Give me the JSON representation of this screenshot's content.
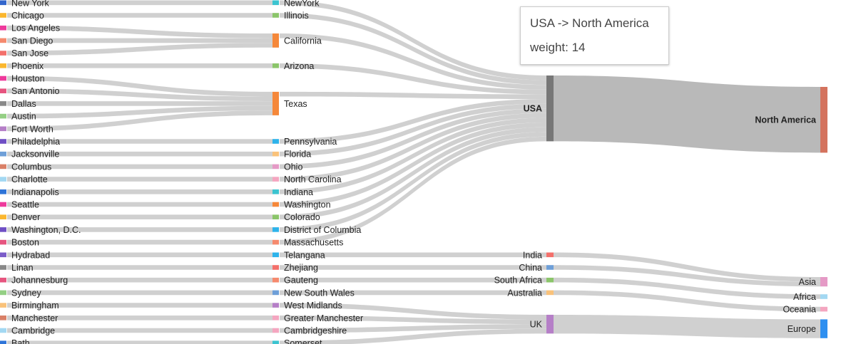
{
  "chart_data": {
    "type": "sankey",
    "tooltip": {
      "link": "USA -> North America",
      "weight_label": "weight: 14"
    },
    "nodes": [
      {
        "id": "New York",
        "label": "New York",
        "color": "#3366cc"
      },
      {
        "id": "Chicago",
        "label": "Chicago",
        "color": "#fbb72f"
      },
      {
        "id": "Los Angeles",
        "label": "Los Angeles",
        "color": "#ee3a9c"
      },
      {
        "id": "San Diego",
        "label": "San Diego",
        "color": "#f58a6e"
      },
      {
        "id": "San Jose",
        "label": "San Jose",
        "color": "#f3706b"
      },
      {
        "id": "Phoenix",
        "label": "Phoenix",
        "color": "#fbb72f"
      },
      {
        "id": "Houston",
        "label": "Houston",
        "color": "#ee3a9c"
      },
      {
        "id": "San Antonio",
        "label": "San Antonio",
        "color": "#e6557f"
      },
      {
        "id": "Dallas",
        "label": "Dallas",
        "color": "#888888"
      },
      {
        "id": "Austin",
        "label": "Austin",
        "color": "#94cf84"
      },
      {
        "id": "Fort Worth",
        "label": "Fort Worth",
        "color": "#b57fc7"
      },
      {
        "id": "Philadelphia",
        "label": "Philadelphia",
        "color": "#6f4fc4"
      },
      {
        "id": "Jacksonville",
        "label": "Jacksonville",
        "color": "#6e9fd8"
      },
      {
        "id": "Columbus",
        "label": "Columbus",
        "color": "#d98067"
      },
      {
        "id": "Charlotte",
        "label": "Charlotte",
        "color": "#a3d8f2"
      },
      {
        "id": "Indianapolis",
        "label": "Indianapolis",
        "color": "#2e74d8"
      },
      {
        "id": "Seattle",
        "label": "Seattle",
        "color": "#ee3a9c"
      },
      {
        "id": "Denver",
        "label": "Denver",
        "color": "#fbb72f"
      },
      {
        "id": "Washington, D.C.",
        "label": "Washington, D.C.",
        "color": "#6f4fc4"
      },
      {
        "id": "Boston",
        "label": "Boston",
        "color": "#e6557f"
      },
      {
        "id": "Hydrabad",
        "label": "Hydrabad",
        "color": "#7a5cc8"
      },
      {
        "id": "Linan",
        "label": "Linan",
        "color": "#888888"
      },
      {
        "id": "Johannesburg",
        "label": "Johannesburg",
        "color": "#e6557f"
      },
      {
        "id": "Sydney",
        "label": "Sydney",
        "color": "#94cf84"
      },
      {
        "id": "Birmingham",
        "label": "Birmingham",
        "color": "#f9c27a"
      },
      {
        "id": "Manchester",
        "label": "Manchester",
        "color": "#d98067"
      },
      {
        "id": "Cambridge",
        "label": "Cambridge",
        "color": "#a3d8f2"
      },
      {
        "id": "Bath",
        "label": "Bath",
        "color": "#2e74d8"
      },
      {
        "id": "NewYork",
        "label": "NewYork",
        "color": "#3cc4d0"
      },
      {
        "id": "Illinois",
        "label": "Illinois",
        "color": "#8bc56a"
      },
      {
        "id": "California",
        "label": "California",
        "color": "#f5883a"
      },
      {
        "id": "Arizona",
        "label": "Arizona",
        "color": "#8bc56a"
      },
      {
        "id": "Texas",
        "label": "Texas",
        "color": "#f5883a"
      },
      {
        "id": "Pennsylvania",
        "label": "Pennsylvania",
        "color": "#2eb3ea"
      },
      {
        "id": "Florida",
        "label": "Florida",
        "color": "#f9c27a"
      },
      {
        "id": "Ohio",
        "label": "Ohio",
        "color": "#e59ac6"
      },
      {
        "id": "North Carolina",
        "label": "North Carolina",
        "color": "#f4a6c0"
      },
      {
        "id": "Indiana",
        "label": "Indiana",
        "color": "#3cc4d0"
      },
      {
        "id": "Washington",
        "label": "Washington",
        "color": "#f5883a"
      },
      {
        "id": "Colorado",
        "label": "Colorado",
        "color": "#8bc56a"
      },
      {
        "id": "District of Columbia",
        "label": "District of Columbia",
        "color": "#2eb3ea"
      },
      {
        "id": "Massachusetts",
        "label": "Massachusetts",
        "color": "#f58a6e"
      },
      {
        "id": "Telangana",
        "label": "Telangana",
        "color": "#2eb3ea"
      },
      {
        "id": "Zhejiang",
        "label": "Zhejiang",
        "color": "#f3706b"
      },
      {
        "id": "Gauteng",
        "label": "Gauteng",
        "color": "#f58a6e"
      },
      {
        "id": "New South Wales",
        "label": "New South Wales",
        "color": "#6e9fd8"
      },
      {
        "id": "West Midlands",
        "label": "West Midlands",
        "color": "#b57fc7"
      },
      {
        "id": "Greater Manchester",
        "label": "Greater Manchester",
        "color": "#f4a6c0"
      },
      {
        "id": "Cambridgeshire",
        "label": "Cambridgeshire",
        "color": "#f4a6c0"
      },
      {
        "id": "Somerset",
        "label": "Somerset",
        "color": "#3cc4d0"
      },
      {
        "id": "USA",
        "label": "USA",
        "color": "#777777"
      },
      {
        "id": "India",
        "label": "India",
        "color": "#f3706b"
      },
      {
        "id": "China",
        "label": "China",
        "color": "#6e9fd8"
      },
      {
        "id": "South Africa",
        "label": "South Africa",
        "color": "#8bc56a"
      },
      {
        "id": "Australia",
        "label": "Australia",
        "color": "#f9c27a"
      },
      {
        "id": "UK",
        "label": "UK",
        "color": "#b57fc7"
      },
      {
        "id": "North America",
        "label": "North America",
        "color": "#d4735e"
      },
      {
        "id": "Asia",
        "label": "Asia",
        "color": "#e59ac6"
      },
      {
        "id": "Africa",
        "label": "Africa",
        "color": "#a3d8f2"
      },
      {
        "id": "Oceania",
        "label": "Oceania",
        "color": "#f4a6c0"
      },
      {
        "id": "Europe",
        "label": "Europe",
        "color": "#2e8ff0"
      }
    ],
    "links": [
      {
        "source": "New York",
        "target": "NewYork",
        "value": 1
      },
      {
        "source": "Chicago",
        "target": "Illinois",
        "value": 1
      },
      {
        "source": "Los Angeles",
        "target": "California",
        "value": 1
      },
      {
        "source": "San Diego",
        "target": "California",
        "value": 1
      },
      {
        "source": "San Jose",
        "target": "California",
        "value": 1
      },
      {
        "source": "Phoenix",
        "target": "Arizona",
        "value": 1
      },
      {
        "source": "Houston",
        "target": "Texas",
        "value": 1
      },
      {
        "source": "San Antonio",
        "target": "Texas",
        "value": 1
      },
      {
        "source": "Dallas",
        "target": "Texas",
        "value": 1
      },
      {
        "source": "Austin",
        "target": "Texas",
        "value": 1
      },
      {
        "source": "Fort Worth",
        "target": "Texas",
        "value": 1
      },
      {
        "source": "Philadelphia",
        "target": "Pennsylvania",
        "value": 1
      },
      {
        "source": "Jacksonville",
        "target": "Florida",
        "value": 1
      },
      {
        "source": "Columbus",
        "target": "Ohio",
        "value": 1
      },
      {
        "source": "Charlotte",
        "target": "North Carolina",
        "value": 1
      },
      {
        "source": "Indianapolis",
        "target": "Indiana",
        "value": 1
      },
      {
        "source": "Seattle",
        "target": "Washington",
        "value": 1
      },
      {
        "source": "Denver",
        "target": "Colorado",
        "value": 1
      },
      {
        "source": "Washington, D.C.",
        "target": "District of Columbia",
        "value": 1
      },
      {
        "source": "Boston",
        "target": "Massachusetts",
        "value": 1
      },
      {
        "source": "Hydrabad",
        "target": "Telangana",
        "value": 1
      },
      {
        "source": "Linan",
        "target": "Zhejiang",
        "value": 1
      },
      {
        "source": "Johannesburg",
        "target": "Gauteng",
        "value": 1
      },
      {
        "source": "Sydney",
        "target": "New South Wales",
        "value": 1
      },
      {
        "source": "Birmingham",
        "target": "West Midlands",
        "value": 1
      },
      {
        "source": "Manchester",
        "target": "Greater Manchester",
        "value": 1
      },
      {
        "source": "Cambridge",
        "target": "Cambridgeshire",
        "value": 1
      },
      {
        "source": "Bath",
        "target": "Somerset",
        "value": 1
      },
      {
        "source": "NewYork",
        "target": "USA",
        "value": 1
      },
      {
        "source": "Illinois",
        "target": "USA",
        "value": 1
      },
      {
        "source": "California",
        "target": "USA",
        "value": 1
      },
      {
        "source": "Arizona",
        "target": "USA",
        "value": 1
      },
      {
        "source": "Texas",
        "target": "USA",
        "value": 1
      },
      {
        "source": "Pennsylvania",
        "target": "USA",
        "value": 1
      },
      {
        "source": "Florida",
        "target": "USA",
        "value": 1
      },
      {
        "source": "Ohio",
        "target": "USA",
        "value": 1
      },
      {
        "source": "North Carolina",
        "target": "USA",
        "value": 1
      },
      {
        "source": "Indiana",
        "target": "USA",
        "value": 1
      },
      {
        "source": "Washington",
        "target": "USA",
        "value": 1
      },
      {
        "source": "Colorado",
        "target": "USA",
        "value": 1
      },
      {
        "source": "District of Columbia",
        "target": "USA",
        "value": 1
      },
      {
        "source": "Massachusetts",
        "target": "USA",
        "value": 1
      },
      {
        "source": "Telangana",
        "target": "India",
        "value": 1
      },
      {
        "source": "Zhejiang",
        "target": "China",
        "value": 1
      },
      {
        "source": "Gauteng",
        "target": "South Africa",
        "value": 1
      },
      {
        "source": "New South Wales",
        "target": "Australia",
        "value": 1
      },
      {
        "source": "West Midlands",
        "target": "UK",
        "value": 1
      },
      {
        "source": "Greater Manchester",
        "target": "UK",
        "value": 1
      },
      {
        "source": "Cambridgeshire",
        "target": "UK",
        "value": 1
      },
      {
        "source": "Somerset",
        "target": "UK",
        "value": 1
      },
      {
        "source": "USA",
        "target": "North America",
        "value": 14
      },
      {
        "source": "India",
        "target": "Asia",
        "value": 1
      },
      {
        "source": "China",
        "target": "Asia",
        "value": 1
      },
      {
        "source": "South Africa",
        "target": "Africa",
        "value": 1
      },
      {
        "source": "Australia",
        "target": "Oceania",
        "value": 1
      },
      {
        "source": "UK",
        "target": "Europe",
        "value": 4
      }
    ]
  }
}
